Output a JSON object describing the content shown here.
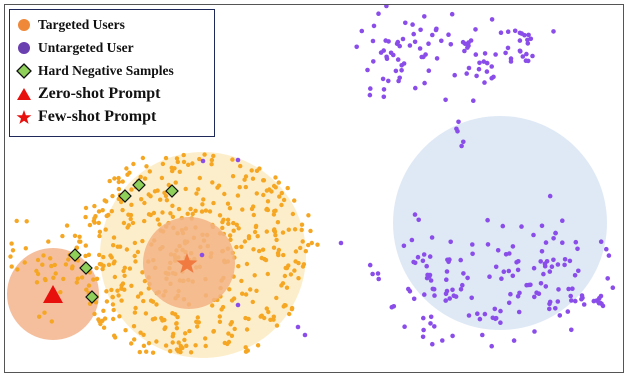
{
  "legend": {
    "items": [
      {
        "label": "Targeted Users",
        "marker": "circle",
        "color": "#f0883a"
      },
      {
        "label": "Untargeted User",
        "marker": "circle",
        "color": "#6a3fb0"
      },
      {
        "label": "Hard Negative Samples",
        "marker": "diamond",
        "color": "#8fd05a"
      },
      {
        "label": "Zero-shot Prompt",
        "marker": "triangle",
        "color": "#e8100c"
      },
      {
        "label": "Few-shot Prompt",
        "marker": "star",
        "color": "#e8100c"
      }
    ]
  },
  "colors": {
    "targeted": "#f5a623",
    "untargeted": "#8a4dea",
    "zero_shot_region": "#f4b894",
    "few_shot_inner_region": "#f2b385",
    "few_shot_outer_region": "#fdebc2",
    "untargeted_region": "#dde8f4",
    "hard_negative_fill": "#8fd05a",
    "prompt_marker": "#e8100c",
    "few_shot_star": "#f07a40"
  }
}
